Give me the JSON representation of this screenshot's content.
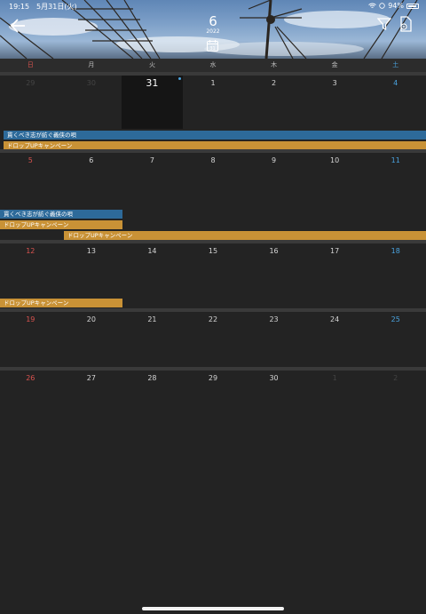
{
  "status_bar": {
    "time_date": "19:15　5月31日(火)",
    "battery": "94%"
  },
  "header": {
    "month": "6",
    "year": "2022",
    "calendar_icon_day": "31"
  },
  "icons": {
    "back": "arrow-left-icon",
    "filter": "filter-icon",
    "export": "export-document-icon",
    "today": "calendar-icon"
  },
  "weekdays": [
    "日",
    "月",
    "火",
    "水",
    "木",
    "金",
    "土"
  ],
  "colors": {
    "sunday": "#d9534f",
    "saturday": "#4aa3df",
    "event_blue": "#2d6a9a",
    "event_orange": "#c99236"
  },
  "weeks": [
    {
      "days": [
        "29",
        "30",
        "31",
        "1",
        "2",
        "3",
        "4"
      ]
    },
    {
      "days": [
        "5",
        "6",
        "7",
        "8",
        "9",
        "10",
        "11"
      ]
    },
    {
      "days": [
        "12",
        "13",
        "14",
        "15",
        "16",
        "17",
        "18"
      ]
    },
    {
      "days": [
        "19",
        "20",
        "21",
        "22",
        "23",
        "24",
        "25"
      ]
    },
    {
      "days": [
        "26",
        "27",
        "28",
        "29",
        "30",
        "1",
        "2"
      ]
    }
  ],
  "events": {
    "e1": "貫くべき志が紡ぐ義侠の唄",
    "e2": "ドロップUPキャンペーン",
    "e3": "貫くべき志が紡ぐ義侠の唄",
    "e4": "ドロップUPキャンペーン",
    "e5": "ドロップUPキャンペーン",
    "e6": "ドロップUPキャンペーン"
  }
}
